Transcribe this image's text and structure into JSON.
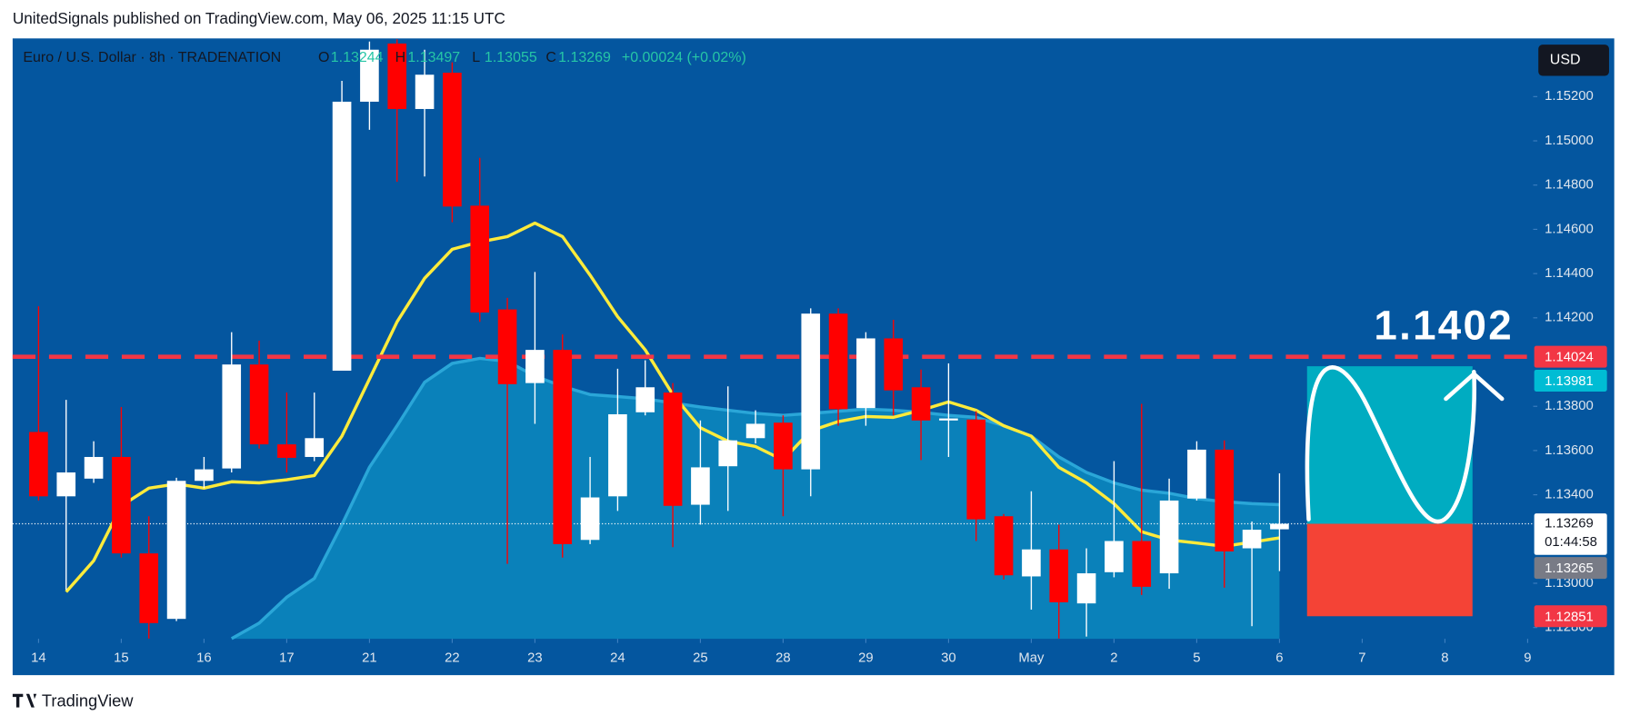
{
  "header": "UnitedSignals published on TradingView.com, May 06, 2025 11:15 UTC",
  "footer_brand": "TradingView",
  "chart_data": {
    "type": "candlestick",
    "title": "Euro / U.S. Dollar · 8h · TRADENATION",
    "ohlc_labels": {
      "open": "O",
      "high": "H",
      "low": "L",
      "close": "C"
    },
    "change_label": "+0.00024 (+0.02%)",
    "currency": "USD",
    "up_color": "#ffffff",
    "down_color": "#ff0000",
    "x": [
      0,
      1,
      2,
      3,
      4,
      5,
      6,
      7,
      8,
      9,
      10,
      11,
      12,
      13,
      14,
      15,
      16,
      17,
      18,
      19,
      20,
      21,
      22,
      23,
      24,
      25,
      26,
      27,
      28,
      29,
      30,
      31,
      32,
      33,
      34,
      35,
      36,
      37,
      38,
      39,
      40,
      41,
      42,
      43,
      44,
      45
    ],
    "open": [
      1.13684,
      1.13393,
      1.13473,
      1.13571,
      1.13135,
      1.12839,
      1.13463,
      1.13519,
      1.13989,
      1.13628,
      1.13571,
      1.13961,
      1.15177,
      1.1544,
      1.15144,
      1.15308,
      1.14707,
      1.14238,
      1.13905,
      1.14055,
      1.13196,
      1.13393,
      1.13773,
      1.13862,
      1.13355,
      1.13529,
      1.13656,
      1.13726,
      1.13515,
      1.14219,
      1.13792,
      1.14107,
      1.13886,
      1.13736,
      1.1374,
      1.13303,
      1.13031,
      1.13153,
      1.12909,
      1.1305,
      1.13191,
      1.13045,
      1.13383,
      1.13604,
      1.13158,
      1.13244
    ],
    "high": [
      1.14252,
      1.13829,
      1.13642,
      1.13797,
      1.13303,
      1.13477,
      1.13571,
      1.14135,
      1.14097,
      1.13862,
      1.13862,
      1.15271,
      1.15449,
      1.15459,
      1.15412,
      1.15355,
      1.14923,
      1.1429,
      1.14407,
      1.14125,
      1.13571,
      1.1397,
      1.14008,
      1.13905,
      1.13736,
      1.1389,
      1.13782,
      1.13759,
      1.14243,
      1.14243,
      1.14135,
      1.14191,
      1.13966,
      1.13994,
      1.13778,
      1.13313,
      1.13416,
      1.13265,
      1.13158,
      1.13552,
      1.13811,
      1.13473,
      1.13642,
      1.13646,
      1.13279,
      1.13497
    ],
    "low": [
      1.13374,
      1.1297,
      1.13454,
      1.13116,
      1.1275,
      1.12829,
      1.1343,
      1.13501,
      1.13609,
      1.13501,
      1.13552,
      1.13961,
      1.1505,
      1.14815,
      1.14839,
      1.14632,
      1.14182,
      1.13088,
      1.13721,
      1.13116,
      1.13177,
      1.13327,
      1.13759,
      1.13163,
      1.13265,
      1.13327,
      1.13632,
      1.13303,
      1.13393,
      1.13712,
      1.13712,
      1.13759,
      1.13557,
      1.13571,
      1.13191,
      1.13017,
      1.12881,
      1.1275,
      1.12759,
      1.13027,
      1.12947,
      1.12975,
      1.13374,
      1.1298,
      1.12806,
      1.13055
    ],
    "close": [
      1.13393,
      1.13501,
      1.13571,
      1.13135,
      1.1282,
      1.13463,
      1.13515,
      1.13989,
      1.13628,
      1.13567,
      1.13656,
      1.15177,
      1.15412,
      1.15144,
      1.15299,
      1.14703,
      1.14224,
      1.139,
      1.14055,
      1.13177,
      1.13388,
      1.13764,
      1.13886,
      1.1335,
      1.13524,
      1.13646,
      1.13721,
      1.13515,
      1.14219,
      1.13787,
      1.14107,
      1.13872,
      1.13736,
      1.13745,
      1.13289,
      1.13036,
      1.13153,
      1.12914,
      1.13045,
      1.13191,
      1.12984,
      1.13374,
      1.13604,
      1.13144,
      1.13242,
      1.13269
    ],
    "ma": {
      "color": "#ffeb3b",
      "values": [
        null,
        1.12961,
        1.13102,
        1.1335,
        1.1343,
        1.13449,
        1.1343,
        1.13459,
        1.13454,
        1.13468,
        1.13487,
        1.13665,
        1.13923,
        1.14182,
        1.14379,
        1.1451,
        1.14543,
        1.14567,
        1.14628,
        1.14567,
        1.14393,
        1.14205,
        1.14055,
        1.13853,
        1.13703,
        1.13642,
        1.13618,
        1.13557,
        1.13689,
        1.13731,
        1.13754,
        1.1375,
        1.13782,
        1.1382,
        1.13782,
        1.13712,
        1.13665,
        1.13524,
        1.13454,
        1.1336,
        1.13233,
        1.13196,
        1.13182,
        1.13167,
        1.13186,
        1.13205
      ]
    },
    "band": {
      "color": "#0b86bd",
      "values": [
        null,
        null,
        null,
        null,
        null,
        null,
        null,
        1.1275,
        1.1282,
        1.12937,
        1.13022,
        1.13265,
        1.13524,
        1.13712,
        1.13909,
        1.13994,
        1.14017,
        1.14003,
        1.13937,
        1.1389,
        1.13853,
        1.13844,
        1.13834,
        1.13815,
        1.13797,
        1.13782,
        1.13768,
        1.13759,
        1.13768,
        1.13778,
        1.13787,
        1.13782,
        1.13773,
        1.13759,
        1.1375,
        1.13712,
        1.13665,
        1.13571,
        1.13501,
        1.13454,
        1.13421,
        1.13407,
        1.13383,
        1.13369,
        1.1336,
        1.13355
      ]
    },
    "level": {
      "value": 1.14024,
      "color": "#f23645"
    },
    "annotation": "1.1402",
    "position": {
      "x_start": 46,
      "x_end": 52,
      "target": 1.13981,
      "entry": 1.13269,
      "stop": 1.12851,
      "target_color": "#00acc1",
      "stop_color": "#f44336"
    },
    "price_tags": [
      {
        "value": 1.14024,
        "color": "#f23645"
      },
      {
        "value": 1.13981,
        "color": "#00bcd4"
      },
      {
        "value": 1.13265,
        "color": "#787b86"
      },
      {
        "value": 1.12851,
        "color": "#f23645"
      }
    ],
    "countdown": "01:44:58",
    "xlim": [
      -0.94,
      54.2
    ],
    "ylim": [
      1.12749,
      1.15463
    ],
    "xticks": [
      {
        "value": 0,
        "label": "14"
      },
      {
        "value": 3,
        "label": "15"
      },
      {
        "value": 6,
        "label": "16"
      },
      {
        "value": 9,
        "label": "17"
      },
      {
        "value": 12,
        "label": "21"
      },
      {
        "value": 15,
        "label": "22"
      },
      {
        "value": 18,
        "label": "23"
      },
      {
        "value": 21,
        "label": "24"
      },
      {
        "value": 24,
        "label": "25"
      },
      {
        "value": 27,
        "label": "28"
      },
      {
        "value": 30,
        "label": "29"
      },
      {
        "value": 33,
        "label": "30"
      },
      {
        "value": 36,
        "label": "May"
      },
      {
        "value": 39,
        "label": "2"
      },
      {
        "value": 42,
        "label": "5"
      },
      {
        "value": 45,
        "label": "6"
      },
      {
        "value": 48,
        "label": "7"
      },
      {
        "value": 51,
        "label": "8"
      },
      {
        "value": 54,
        "label": "9"
      }
    ],
    "yticks": [
      {
        "value": 1.152,
        "label": "1.15200"
      },
      {
        "value": 1.15,
        "label": "1.15000"
      },
      {
        "value": 1.148,
        "label": "1.14800"
      },
      {
        "value": 1.146,
        "label": "1.14600"
      },
      {
        "value": 1.144,
        "label": "1.14400"
      },
      {
        "value": 1.142,
        "label": "1.14200"
      },
      {
        "value": 1.138,
        "label": "1.13800"
      },
      {
        "value": 1.136,
        "label": "1.13600"
      },
      {
        "value": 1.134,
        "label": "1.13400"
      },
      {
        "value": 1.13,
        "label": "1.13000"
      },
      {
        "value": 1.128,
        "label": "1.12800"
      }
    ]
  }
}
